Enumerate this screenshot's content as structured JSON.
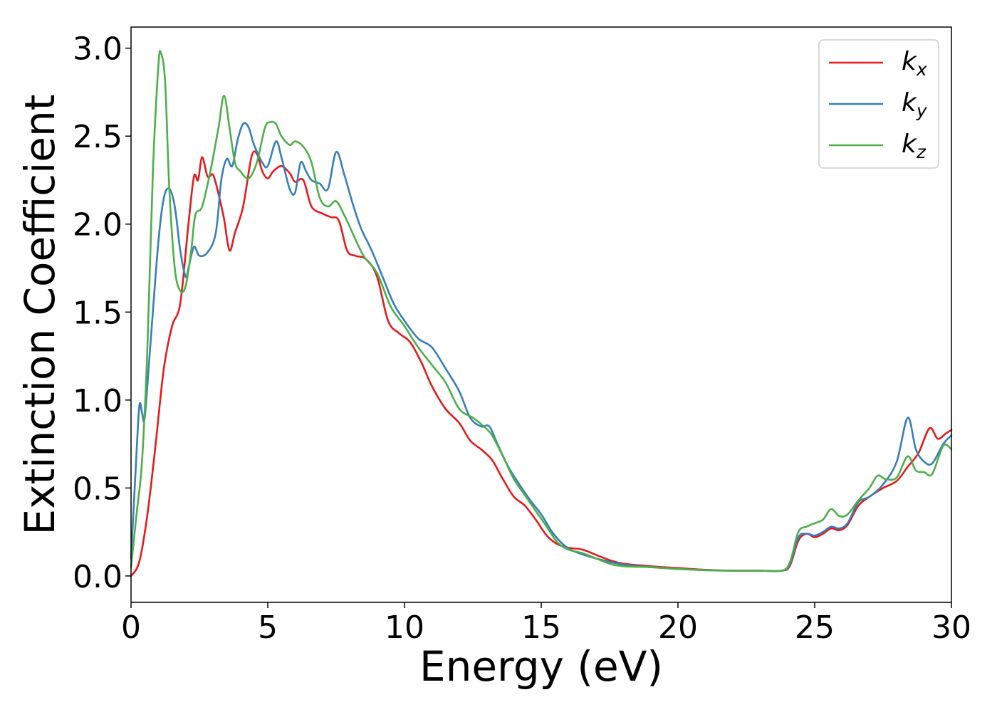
{
  "chart_data": {
    "type": "line",
    "title": "",
    "xlabel": "Energy (eV)",
    "ylabel": "Extinction Coefficient",
    "xlim": [
      0,
      30
    ],
    "ylim": [
      -0.15,
      3.12
    ],
    "xticks": [
      0,
      5,
      10,
      15,
      20,
      25,
      30
    ],
    "xtick_labels": [
      "0",
      "5",
      "10",
      "15",
      "20",
      "25",
      "30"
    ],
    "yticks": [
      0.0,
      0.5,
      1.0,
      1.5,
      2.0,
      2.5,
      3.0
    ],
    "ytick_labels": [
      "0.0",
      "0.5",
      "1.0",
      "1.5",
      "2.0",
      "2.5",
      "3.0"
    ],
    "grid": false,
    "legend_position": "top-right",
    "series": [
      {
        "name": "k",
        "subscript": "x",
        "color": "#e41a1c",
        "points": [
          [
            0,
            0.0
          ],
          [
            0.3,
            0.08
          ],
          [
            0.6,
            0.35
          ],
          [
            0.9,
            0.75
          ],
          [
            1.2,
            1.18
          ],
          [
            1.5,
            1.42
          ],
          [
            1.8,
            1.55
          ],
          [
            2.1,
            2.0
          ],
          [
            2.3,
            2.27
          ],
          [
            2.45,
            2.25
          ],
          [
            2.6,
            2.38
          ],
          [
            2.8,
            2.27
          ],
          [
            3.0,
            2.28
          ],
          [
            3.2,
            2.17
          ],
          [
            3.4,
            2.03
          ],
          [
            3.6,
            1.85
          ],
          [
            3.8,
            1.95
          ],
          [
            4.1,
            2.1
          ],
          [
            4.4,
            2.38
          ],
          [
            4.6,
            2.4
          ],
          [
            4.8,
            2.3
          ],
          [
            5.0,
            2.26
          ],
          [
            5.2,
            2.3
          ],
          [
            5.5,
            2.33
          ],
          [
            5.8,
            2.29
          ],
          [
            6.0,
            2.24
          ],
          [
            6.3,
            2.25
          ],
          [
            6.6,
            2.1
          ],
          [
            7.0,
            2.06
          ],
          [
            7.3,
            2.04
          ],
          [
            7.6,
            2.02
          ],
          [
            7.9,
            1.85
          ],
          [
            8.2,
            1.82
          ],
          [
            8.6,
            1.8
          ],
          [
            9.0,
            1.7
          ],
          [
            9.4,
            1.45
          ],
          [
            9.8,
            1.38
          ],
          [
            10.2,
            1.33
          ],
          [
            10.6,
            1.22
          ],
          [
            11.0,
            1.08
          ],
          [
            11.5,
            0.95
          ],
          [
            12.0,
            0.87
          ],
          [
            12.4,
            0.77
          ],
          [
            12.8,
            0.72
          ],
          [
            13.2,
            0.66
          ],
          [
            13.6,
            0.55
          ],
          [
            14.0,
            0.45
          ],
          [
            14.4,
            0.4
          ],
          [
            14.8,
            0.32
          ],
          [
            15.2,
            0.23
          ],
          [
            15.6,
            0.18
          ],
          [
            16.0,
            0.16
          ],
          [
            16.5,
            0.15
          ],
          [
            17.0,
            0.12
          ],
          [
            17.5,
            0.09
          ],
          [
            18.0,
            0.07
          ],
          [
            19.0,
            0.055
          ],
          [
            20.0,
            0.045
          ],
          [
            21.0,
            0.035
          ],
          [
            22.0,
            0.03
          ],
          [
            23.0,
            0.03
          ],
          [
            23.8,
            0.03
          ],
          [
            24.1,
            0.06
          ],
          [
            24.4,
            0.2
          ],
          [
            24.7,
            0.24
          ],
          [
            25.0,
            0.22
          ],
          [
            25.3,
            0.24
          ],
          [
            25.6,
            0.27
          ],
          [
            25.9,
            0.26
          ],
          [
            26.2,
            0.29
          ],
          [
            26.6,
            0.4
          ],
          [
            27.0,
            0.45
          ],
          [
            27.5,
            0.5
          ],
          [
            28.0,
            0.54
          ],
          [
            28.4,
            0.62
          ],
          [
            28.8,
            0.7
          ],
          [
            29.2,
            0.84
          ],
          [
            29.5,
            0.78
          ],
          [
            29.8,
            0.81
          ],
          [
            30.0,
            0.83
          ]
        ]
      },
      {
        "name": "k",
        "subscript": "y",
        "color": "#377eb8",
        "points": [
          [
            0,
            0.1
          ],
          [
            0.15,
            0.55
          ],
          [
            0.3,
            0.96
          ],
          [
            0.4,
            0.93
          ],
          [
            0.5,
            0.9
          ],
          [
            0.7,
            1.3
          ],
          [
            1.0,
            1.9
          ],
          [
            1.2,
            2.15
          ],
          [
            1.4,
            2.2
          ],
          [
            1.6,
            2.1
          ],
          [
            1.8,
            1.85
          ],
          [
            2.0,
            1.7
          ],
          [
            2.1,
            1.75
          ],
          [
            2.3,
            1.87
          ],
          [
            2.5,
            1.82
          ],
          [
            2.8,
            1.84
          ],
          [
            3.1,
            1.95
          ],
          [
            3.3,
            2.25
          ],
          [
            3.5,
            2.37
          ],
          [
            3.7,
            2.33
          ],
          [
            3.9,
            2.48
          ],
          [
            4.1,
            2.57
          ],
          [
            4.3,
            2.55
          ],
          [
            4.5,
            2.45
          ],
          [
            4.8,
            2.35
          ],
          [
            5.0,
            2.33
          ],
          [
            5.3,
            2.47
          ],
          [
            5.5,
            2.38
          ],
          [
            5.8,
            2.2
          ],
          [
            6.0,
            2.18
          ],
          [
            6.2,
            2.35
          ],
          [
            6.4,
            2.3
          ],
          [
            6.6,
            2.25
          ],
          [
            6.9,
            2.23
          ],
          [
            7.2,
            2.2
          ],
          [
            7.5,
            2.41
          ],
          [
            7.8,
            2.28
          ],
          [
            8.1,
            2.12
          ],
          [
            8.4,
            1.98
          ],
          [
            8.8,
            1.85
          ],
          [
            9.2,
            1.7
          ],
          [
            9.6,
            1.55
          ],
          [
            10.0,
            1.45
          ],
          [
            10.5,
            1.35
          ],
          [
            11.0,
            1.3
          ],
          [
            11.5,
            1.18
          ],
          [
            12.0,
            1.05
          ],
          [
            12.4,
            0.9
          ],
          [
            12.8,
            0.85
          ],
          [
            13.1,
            0.85
          ],
          [
            13.4,
            0.75
          ],
          [
            13.8,
            0.62
          ],
          [
            14.2,
            0.52
          ],
          [
            14.6,
            0.43
          ],
          [
            15.0,
            0.35
          ],
          [
            15.4,
            0.25
          ],
          [
            15.8,
            0.18
          ],
          [
            16.2,
            0.14
          ],
          [
            17.0,
            0.1
          ],
          [
            18.0,
            0.065
          ],
          [
            19.0,
            0.05
          ],
          [
            20.0,
            0.04
          ],
          [
            21.0,
            0.033
          ],
          [
            22.0,
            0.03
          ],
          [
            23.0,
            0.03
          ],
          [
            23.8,
            0.03
          ],
          [
            24.1,
            0.07
          ],
          [
            24.4,
            0.22
          ],
          [
            24.7,
            0.24
          ],
          [
            25.0,
            0.23
          ],
          [
            25.3,
            0.25
          ],
          [
            25.6,
            0.28
          ],
          [
            25.9,
            0.27
          ],
          [
            26.2,
            0.3
          ],
          [
            26.6,
            0.42
          ],
          [
            27.0,
            0.45
          ],
          [
            27.5,
            0.52
          ],
          [
            28.0,
            0.65
          ],
          [
            28.4,
            0.9
          ],
          [
            28.7,
            0.72
          ],
          [
            29.0,
            0.65
          ],
          [
            29.3,
            0.64
          ],
          [
            29.7,
            0.75
          ],
          [
            30.0,
            0.8
          ]
        ]
      },
      {
        "name": "k",
        "subscript": "z",
        "color": "#4daf4a",
        "points": [
          [
            0,
            0.05
          ],
          [
            0.2,
            0.35
          ],
          [
            0.4,
            0.65
          ],
          [
            0.6,
            1.3
          ],
          [
            0.8,
            2.3
          ],
          [
            1.0,
            2.9
          ],
          [
            1.1,
            2.97
          ],
          [
            1.25,
            2.8
          ],
          [
            1.4,
            2.2
          ],
          [
            1.6,
            1.75
          ],
          [
            1.8,
            1.62
          ],
          [
            2.0,
            1.65
          ],
          [
            2.2,
            1.85
          ],
          [
            2.35,
            2.05
          ],
          [
            2.6,
            2.1
          ],
          [
            2.9,
            2.3
          ],
          [
            3.2,
            2.55
          ],
          [
            3.4,
            2.73
          ],
          [
            3.6,
            2.55
          ],
          [
            3.8,
            2.35
          ],
          [
            4.0,
            2.3
          ],
          [
            4.3,
            2.26
          ],
          [
            4.6,
            2.35
          ],
          [
            4.9,
            2.55
          ],
          [
            5.1,
            2.58
          ],
          [
            5.3,
            2.57
          ],
          [
            5.5,
            2.5
          ],
          [
            5.8,
            2.45
          ],
          [
            6.0,
            2.47
          ],
          [
            6.3,
            2.44
          ],
          [
            6.6,
            2.35
          ],
          [
            6.9,
            2.15
          ],
          [
            7.2,
            2.1
          ],
          [
            7.5,
            2.13
          ],
          [
            7.8,
            2.05
          ],
          [
            8.1,
            1.95
          ],
          [
            8.5,
            1.82
          ],
          [
            9.0,
            1.72
          ],
          [
            9.5,
            1.53
          ],
          [
            10.0,
            1.42
          ],
          [
            10.5,
            1.3
          ],
          [
            11.0,
            1.2
          ],
          [
            11.5,
            1.1
          ],
          [
            12.0,
            0.95
          ],
          [
            12.5,
            0.9
          ],
          [
            12.9,
            0.85
          ],
          [
            13.2,
            0.8
          ],
          [
            13.6,
            0.68
          ],
          [
            14.0,
            0.55
          ],
          [
            14.4,
            0.46
          ],
          [
            14.8,
            0.37
          ],
          [
            15.2,
            0.28
          ],
          [
            15.6,
            0.19
          ],
          [
            16.0,
            0.15
          ],
          [
            16.5,
            0.13
          ],
          [
            17.0,
            0.1
          ],
          [
            17.5,
            0.07
          ],
          [
            18.0,
            0.055
          ],
          [
            19.0,
            0.05
          ],
          [
            20.0,
            0.04
          ],
          [
            21.0,
            0.033
          ],
          [
            22.0,
            0.03
          ],
          [
            23.0,
            0.03
          ],
          [
            23.8,
            0.03
          ],
          [
            24.1,
            0.08
          ],
          [
            24.4,
            0.25
          ],
          [
            24.7,
            0.28
          ],
          [
            25.0,
            0.3
          ],
          [
            25.3,
            0.32
          ],
          [
            25.6,
            0.38
          ],
          [
            25.9,
            0.34
          ],
          [
            26.2,
            0.35
          ],
          [
            26.6,
            0.43
          ],
          [
            27.0,
            0.5
          ],
          [
            27.3,
            0.57
          ],
          [
            27.6,
            0.55
          ],
          [
            28.0,
            0.56
          ],
          [
            28.4,
            0.68
          ],
          [
            28.7,
            0.6
          ],
          [
            29.0,
            0.59
          ],
          [
            29.3,
            0.58
          ],
          [
            29.7,
            0.74
          ],
          [
            30.0,
            0.72
          ]
        ]
      }
    ]
  }
}
